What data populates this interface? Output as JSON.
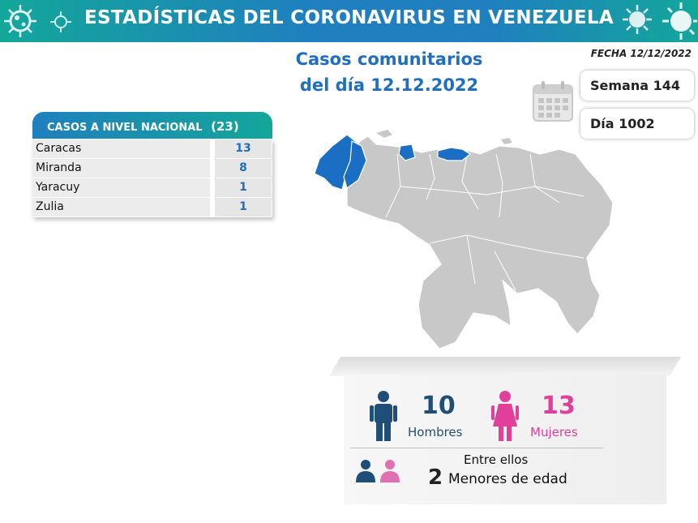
{
  "banner": {
    "title": "ESTADÍSTICAS DEL CORONAVIRUS EN VENEZUELA"
  },
  "header": {
    "title_line1": "Casos comunitarios",
    "title_line2": "del día 12.12.2022",
    "fecha": "FECHA 12/12/2022"
  },
  "week": {
    "semana": "Semana 144",
    "dia": "Día 1002"
  },
  "table": {
    "header_label": "CASOS A NIVEL NACIONAL",
    "header_total": "(23)",
    "rows": [
      {
        "state": "Caracas",
        "value": "13"
      },
      {
        "state": "Miranda",
        "value": "8"
      },
      {
        "state": "Yaracuy",
        "value": "1"
      },
      {
        "state": "Zulia",
        "value": "1"
      }
    ]
  },
  "map": {
    "highlight_color": "#1a6fc4",
    "base_color": "#c8c8c8",
    "border_color": "#ffffff"
  },
  "demographics": {
    "hombres_value": "10",
    "hombres_label": "Hombres",
    "mujeres_value": "13",
    "mujeres_label": "Mujeres",
    "entre_ellos": "Entre ellos",
    "menores_value": "2",
    "menores_label": "Menores de edad",
    "male_color": "#1f4e79",
    "female_color": "#e0409a"
  },
  "colors": {
    "title_blue": "#1f6fbf",
    "teal": "#13a79a"
  }
}
